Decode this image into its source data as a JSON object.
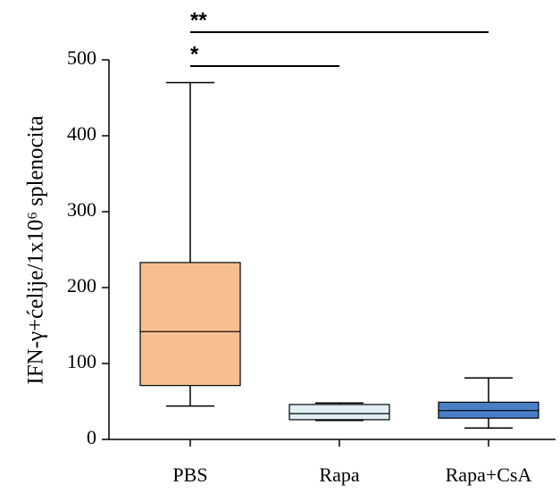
{
  "chart_data": {
    "type": "box",
    "y_label": "IFN-γ+ćelije/1x10⁶ splenocita",
    "categories": [
      "PBS",
      "Rapa",
      "Rapa+CsA"
    ],
    "boxes": [
      {
        "min": 44,
        "q1": 71,
        "median": 142,
        "q3": 233,
        "max": 470,
        "color": "#f7bf8f"
      },
      {
        "min": 25,
        "q1": 26,
        "median": 34,
        "q3": 46,
        "max": 48,
        "color": "#dff0f3"
      },
      {
        "min": 15,
        "q1": 28,
        "median": 38,
        "q3": 49,
        "max": 81,
        "color": "#4a7fc8"
      }
    ],
    "ylim": [
      0,
      500
    ],
    "yticks": [
      0,
      100,
      200,
      300,
      400,
      500
    ],
    "significance": [
      {
        "label": "**",
        "from": 0,
        "to": 2
      },
      {
        "label": "*",
        "from": 0,
        "to": 1
      }
    ]
  }
}
